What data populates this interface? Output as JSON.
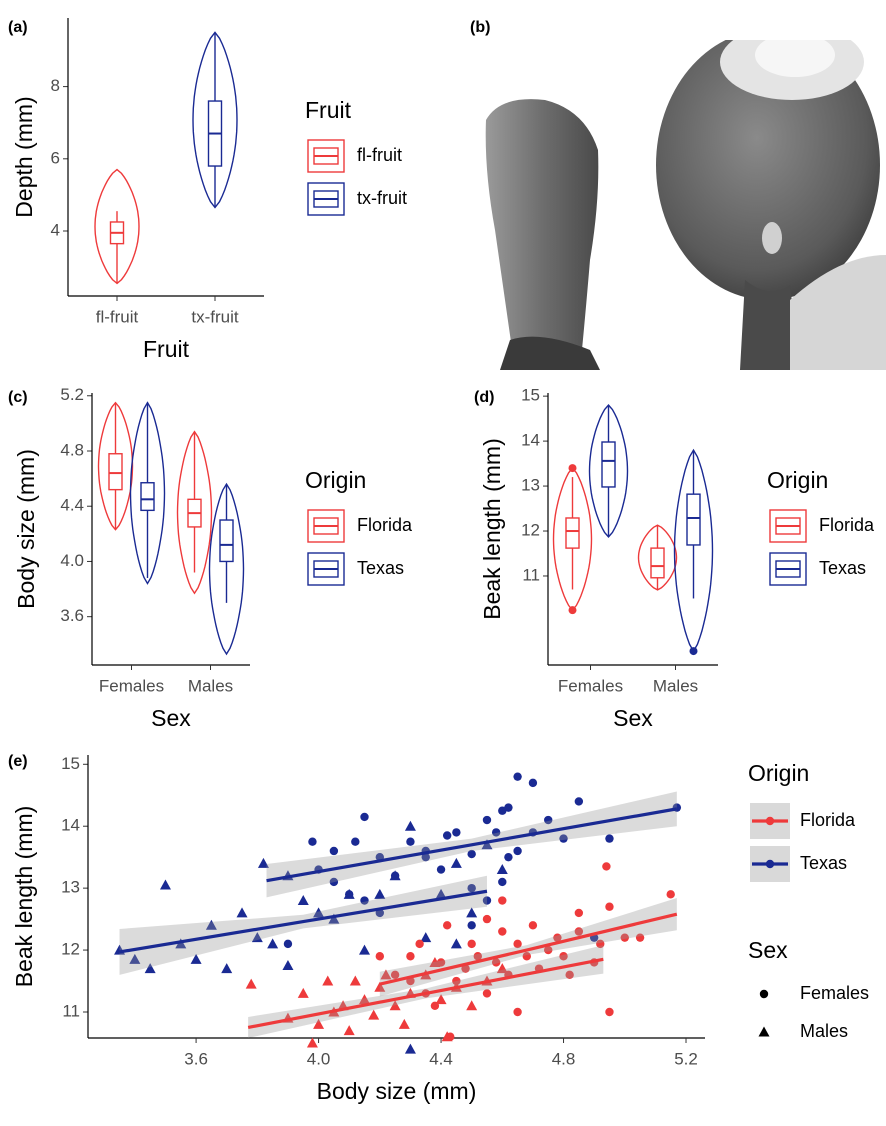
{
  "photo_label": "(b)",
  "chart_data": [
    {
      "type": "violin",
      "panel_label": "(a)",
      "x_label": "Fruit",
      "y_label": "Depth (mm)",
      "legend_title": "Fruit",
      "categories": [
        "fl-fruit",
        "tx-fruit"
      ],
      "dodge": false,
      "ylim": [
        2.2,
        9.9
      ],
      "yticks": [
        4,
        6,
        8
      ],
      "series": [
        {
          "name": "fl-fruit",
          "color": "#ee3a3b",
          "boxes": [
            {
              "min": 2.55,
              "whisker_low": 2.55,
              "q1": 3.65,
              "median": 3.95,
              "q3": 4.25,
              "whisker_high": 4.55,
              "max": 5.7,
              "outliers": []
            },
            null
          ]
        },
        {
          "name": "tx-fruit",
          "color": "#1a2a93",
          "boxes": [
            null,
            {
              "min": 4.65,
              "whisker_low": 4.65,
              "q1": 5.8,
              "median": 6.7,
              "q3": 7.6,
              "whisker_high": 9.5,
              "max": 9.5,
              "outliers": []
            }
          ]
        }
      ]
    },
    {
      "type": "violin",
      "panel_label": "(c)",
      "x_label": "Sex",
      "y_label": "Body size (mm)",
      "legend_title": "Origin",
      "categories": [
        "Females",
        "Males"
      ],
      "dodge": true,
      "ylim": [
        3.25,
        5.22
      ],
      "yticks": [
        3.6,
        {
          "value": 4,
          "label": "4.0"
        },
        4.4,
        4.8,
        5.2
      ],
      "series": [
        {
          "name": "Florida",
          "color": "#ee3a3b",
          "boxes": [
            {
              "min": 4.23,
              "whisker_low": 4.23,
              "q1": 4.52,
              "median": 4.64,
              "q3": 4.78,
              "whisker_high": 5.15,
              "max": 5.15,
              "outliers": []
            },
            {
              "min": 3.77,
              "whisker_low": 3.92,
              "q1": 4.25,
              "median": 4.35,
              "q3": 4.45,
              "whisker_high": 4.94,
              "max": 4.94,
              "outliers": []
            }
          ]
        },
        {
          "name": "Texas",
          "color": "#1a2a93",
          "boxes": [
            {
              "min": 3.84,
              "whisker_low": 3.88,
              "q1": 4.37,
              "median": 4.45,
              "q3": 4.57,
              "whisker_high": 5.15,
              "max": 5.15,
              "outliers": []
            },
            {
              "min": 3.33,
              "whisker_low": 3.7,
              "q1": 4.0,
              "median": 4.12,
              "q3": 4.3,
              "whisker_high": 4.56,
              "max": 4.56,
              "outliers": []
            }
          ]
        }
      ]
    },
    {
      "type": "violin",
      "panel_label": "(d)",
      "x_label": "Sex",
      "y_label": "Beak length (mm)",
      "legend_title": "Origin",
      "categories": [
        "Females",
        "Males"
      ],
      "dodge": true,
      "ylim": [
        9.02,
        15.07
      ],
      "yticks": [
        11,
        12,
        13,
        14,
        15
      ],
      "series": [
        {
          "name": "Florida",
          "color": "#ee3a3b",
          "boxes": [
            {
              "min": 10.24,
              "whisker_low": 10.7,
              "q1": 11.62,
              "median": 12.0,
              "q3": 12.29,
              "whisker_high": 13.2,
              "max": 13.4,
              "outliers": [
                13.4,
                10.24
              ]
            },
            {
              "min": 10.69,
              "whisker_low": 10.69,
              "q1": 10.96,
              "median": 11.22,
              "q3": 11.62,
              "whisker_high": 12.13,
              "max": 12.13,
              "outliers": []
            }
          ]
        },
        {
          "name": "Texas",
          "color": "#1a2a93",
          "boxes": [
            {
              "min": 11.87,
              "whisker_low": 11.87,
              "q1": 12.98,
              "median": 13.56,
              "q3": 13.98,
              "whisker_high": 14.8,
              "max": 14.8,
              "outliers": []
            },
            {
              "min": 9.33,
              "whisker_low": 10.5,
              "q1": 11.69,
              "median": 12.29,
              "q3": 12.82,
              "whisker_high": 13.8,
              "max": 13.8,
              "outliers": [
                9.33
              ]
            }
          ]
        }
      ]
    },
    {
      "type": "scatter",
      "panel_label": "(e)",
      "x_label": "Body size (mm)",
      "y_label": "Beak length (mm)",
      "legend_title": "Origin",
      "sex_title": "Sex",
      "xlim": [
        3.247,
        5.262
      ],
      "ylim": [
        10.58,
        15.15
      ],
      "xticks": [
        3.6,
        {
          "value": 4,
          "label": "4.0"
        },
        4.4,
        4.8,
        5.2
      ],
      "yticks": [
        11,
        12,
        13,
        14,
        15
      ],
      "origins": [
        {
          "name": "Florida",
          "color": "#ee3a3b"
        },
        {
          "name": "Texas",
          "color": "#1a2a93"
        }
      ],
      "sexes": [
        {
          "name": "Females",
          "shape": "circle"
        },
        {
          "name": "Males",
          "shape": "triangle"
        }
      ],
      "groups": [
        {
          "origin": "Texas",
          "sex": "Females",
          "x": [
            4.15,
            3.98,
            4.05,
            4.12,
            4.2,
            4.3,
            4.35,
            4.42,
            4.45,
            4.5,
            4.6,
            4.62,
            4.65,
            4.7,
            4.58,
            4.65,
            4.55,
            4.85,
            4.8,
            4.75,
            4.1,
            4.0,
            4.25,
            4.4,
            4.5,
            4.2,
            4.05,
            4.7,
            4.62,
            5.17,
            4.9,
            4.5,
            4.55,
            4.35,
            3.9,
            4.15,
            4.6,
            4.95
          ],
          "y": [
            14.15,
            13.75,
            13.6,
            13.75,
            13.5,
            13.75,
            13.6,
            13.85,
            13.9,
            13.55,
            14.25,
            14.3,
            14.8,
            14.7,
            13.9,
            13.6,
            14.1,
            14.4,
            13.8,
            14.1,
            12.9,
            13.3,
            13.2,
            13.3,
            13.0,
            12.6,
            13.1,
            13.9,
            13.5,
            14.3,
            12.2,
            12.4,
            12.8,
            13.5,
            12.1,
            12.8,
            13.1,
            13.8
          ],
          "fit": {
            "x": [
              3.83,
              4.5,
              5.17
            ],
            "y": [
              13.12,
              13.7,
              14.28
            ],
            "lower": [
              12.85,
              13.6,
              14.0
            ],
            "upper": [
              13.39,
              13.8,
              14.56
            ]
          }
        },
        {
          "origin": "Texas",
          "sex": "Males",
          "x": [
            3.35,
            3.45,
            3.5,
            3.55,
            3.6,
            3.7,
            3.75,
            3.8,
            3.82,
            3.85,
            3.9,
            3.95,
            4.0,
            4.05,
            4.1,
            4.2,
            4.3,
            4.3,
            4.35,
            4.4,
            4.45,
            4.5,
            4.55,
            4.45,
            3.4,
            4.25,
            3.9,
            4.15,
            4.6,
            3.65
          ],
          "y": [
            12.0,
            11.7,
            13.05,
            12.1,
            11.85,
            11.7,
            12.6,
            12.2,
            13.4,
            12.1,
            11.75,
            12.8,
            12.6,
            12.5,
            12.9,
            12.9,
            14.0,
            10.4,
            12.2,
            12.9,
            13.4,
            12.6,
            13.7,
            12.1,
            11.85,
            13.2,
            13.2,
            12.0,
            13.3,
            12.4
          ],
          "fit": {
            "x": [
              3.35,
              3.95,
              4.55
            ],
            "y": [
              11.97,
              12.46,
              12.95
            ],
            "lower": [
              11.6,
              12.35,
              12.7
            ],
            "upper": [
              12.34,
              12.57,
              13.2
            ]
          }
        },
        {
          "origin": "Florida",
          "sex": "Females",
          "x": [
            4.2,
            4.25,
            4.3,
            4.33,
            4.35,
            4.4,
            4.42,
            4.45,
            4.48,
            4.5,
            4.52,
            4.55,
            4.58,
            4.6,
            4.62,
            4.65,
            4.68,
            4.7,
            4.72,
            4.75,
            4.78,
            4.8,
            4.82,
            4.85,
            4.9,
            4.92,
            4.94,
            4.95,
            5.0,
            5.05,
            5.15,
            4.43,
            4.38,
            4.55,
            4.65,
            4.3,
            4.95,
            4.85,
            4.6
          ],
          "y": [
            11.9,
            11.6,
            11.5,
            12.1,
            11.3,
            11.8,
            12.4,
            11.5,
            11.7,
            12.1,
            11.9,
            12.5,
            11.8,
            12.3,
            11.6,
            12.1,
            11.9,
            12.4,
            11.7,
            12.0,
            12.2,
            11.9,
            11.6,
            12.3,
            11.8,
            12.1,
            13.35,
            12.7,
            12.2,
            12.2,
            12.9,
            10.6,
            11.1,
            11.3,
            11.0,
            11.9,
            11.0,
            12.6,
            12.8
          ],
          "fit": {
            "x": [
              4.2,
              4.68,
              5.17
            ],
            "y": [
              11.45,
              12.0,
              12.58
            ],
            "lower": [
              11.25,
              11.92,
              12.32
            ],
            "upper": [
              11.65,
              12.08,
              12.84
            ]
          }
        },
        {
          "origin": "Florida",
          "sex": "Males",
          "x": [
            3.78,
            3.9,
            3.95,
            4.0,
            4.05,
            4.1,
            4.12,
            4.15,
            4.18,
            4.2,
            4.25,
            4.28,
            4.3,
            4.35,
            4.4,
            4.42,
            4.45,
            4.5,
            4.55,
            4.6,
            4.38,
            4.22,
            4.08,
            4.03,
            3.98
          ],
          "y": [
            11.45,
            10.9,
            11.3,
            10.8,
            11.0,
            10.7,
            11.5,
            11.2,
            10.95,
            11.4,
            11.1,
            10.8,
            11.3,
            11.6,
            11.2,
            10.6,
            11.4,
            11.1,
            11.5,
            11.7,
            11.8,
            11.6,
            11.1,
            11.5,
            10.5
          ],
          "fit": {
            "x": [
              3.77,
              4.35,
              4.93
            ],
            "y": [
              10.75,
              11.3,
              11.85
            ],
            "lower": [
              10.58,
              11.22,
              11.62
            ],
            "upper": [
              10.92,
              11.38,
              12.08
            ]
          }
        }
      ]
    }
  ]
}
